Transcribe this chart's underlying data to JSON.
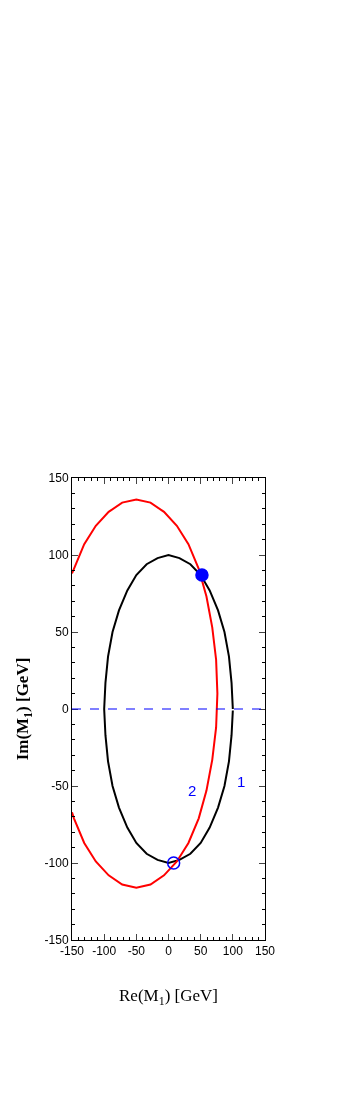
{
  "chart_data": {
    "type": "line",
    "xlabel": "Re(M$_{1}$) [GeV]",
    "ylabel": "Im(M$_{1}$) [GeV]",
    "xlim": [
      -150,
      150
    ],
    "xticks": [
      -150,
      -100,
      -50,
      0,
      50,
      100,
      150
    ],
    "ylim": [
      -150,
      150
    ],
    "yticks": [
      -150,
      -100,
      -50,
      0,
      50,
      100,
      150
    ],
    "grid": false,
    "line_style": "solid",
    "series": [
      {
        "color": "#000000",
        "x": [
          100,
          98,
          94,
          87,
          77,
          64,
          50,
          34,
          17,
          0,
          -17,
          -34,
          -50,
          -64,
          -77,
          -87,
          -94,
          -98,
          -100,
          -98,
          -94,
          -87,
          -77,
          -64,
          -50,
          -34,
          -17,
          0,
          17,
          34,
          50,
          64,
          77,
          87,
          94,
          98,
          100
        ],
        "values": [
          0,
          17,
          34,
          50,
          64,
          77,
          87,
          94,
          98,
          100,
          98,
          94,
          87,
          77,
          64,
          50,
          34,
          17,
          0,
          -17,
          -34,
          -50,
          -64,
          -77,
          -87,
          -94,
          -98,
          -100,
          -98,
          -94,
          -87,
          -77,
          -64,
          -50,
          -34,
          -17,
          -1
        ]
      },
      {
        "color": "#ff0000",
        "x": [
          -150,
          -147,
          -131,
          -113,
          -93,
          -72,
          -50,
          -28,
          -7,
          13,
          31,
          47,
          59,
          68,
          74,
          76,
          74,
          68,
          59,
          47,
          31,
          13,
          -7,
          -28,
          -50,
          -72,
          -93,
          -113,
          -131,
          -147,
          -150
        ],
        "values": [
          88,
          91,
          107,
          119,
          128,
          134,
          136,
          134,
          128,
          119,
          107,
          91,
          73,
          53,
          32,
          10,
          -12,
          -33,
          -53,
          -71,
          -87,
          -99,
          -108,
          -114,
          -116,
          -114,
          -108,
          -99,
          -87,
          -71,
          -67
        ]
      },
      {
        "type": "scatter",
        "marker": "circle",
        "color": "#0000ff",
        "x": [
          52
        ],
        "values": [
          87
        ]
      },
      {
        "type": "scatter",
        "marker": "circle",
        "color": "#0000ff",
        "x": [
          8
        ],
        "values": [
          -100
        ]
      }
    ],
    "ref_lines": [
      {
        "axis": "y",
        "value": 0,
        "color": "#0000ff",
        "line_style": "dashed"
      }
    ],
    "annotations": [
      "1",
      "2"
    ]
  }
}
